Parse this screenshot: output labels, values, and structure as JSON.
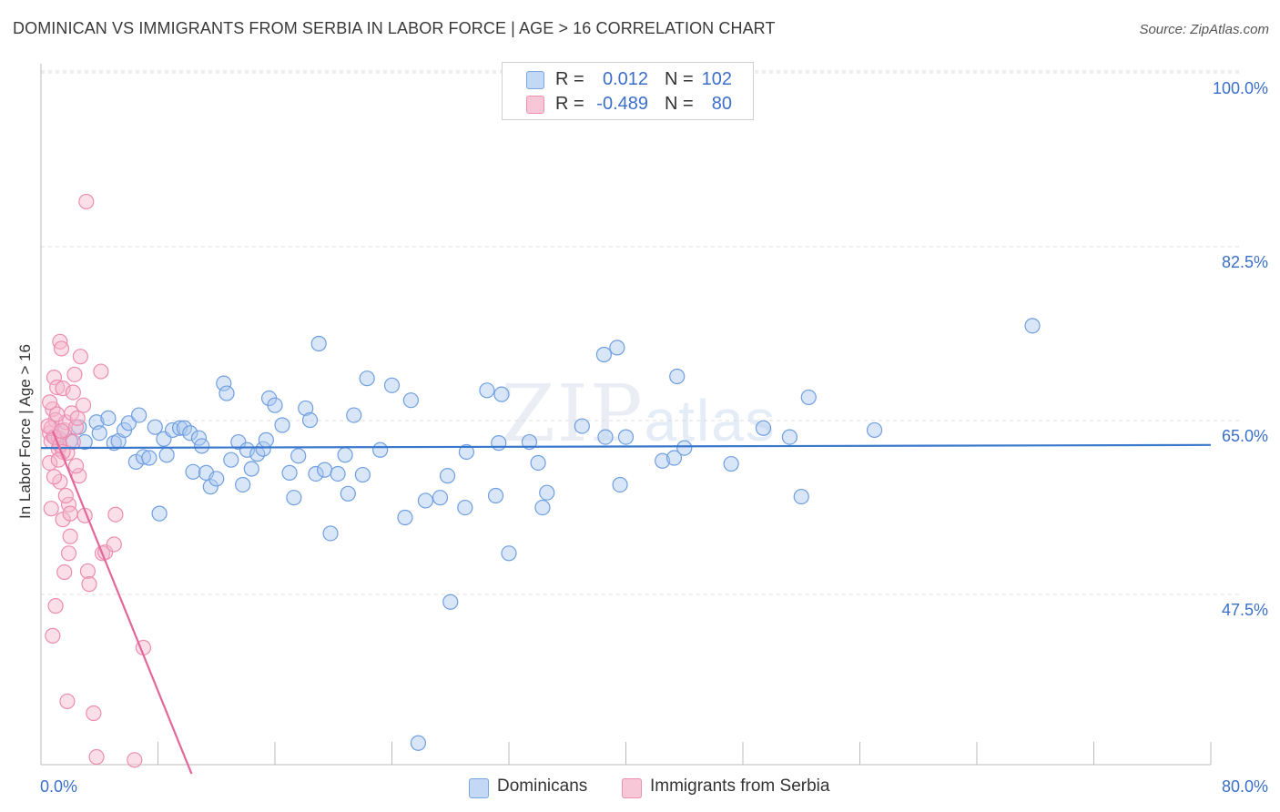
{
  "header": {
    "title": "DOMINICAN VS IMMIGRANTS FROM SERBIA IN LABOR FORCE | AGE > 16 CORRELATION CHART",
    "source": "Source: ZipAtlas.com"
  },
  "watermark": {
    "zip": "ZIP",
    "atlas": "atlas"
  },
  "stats": {
    "blue": {
      "r_label": "R =",
      "r_value": "0.012",
      "n_label": "N =",
      "n_value": "102"
    },
    "pink": {
      "r_label": "R =",
      "r_value": "-0.489",
      "n_label": "N =",
      "n_value": "80"
    }
  },
  "colors": {
    "blue": "#7aa6e0",
    "blue_line": "#3a78cc",
    "pink": "#ee8eb0",
    "pink_line": "#e3679a",
    "label_blue": "#3b6fc9"
  },
  "chart_data": {
    "type": "scatter",
    "title": "DOMINICAN VS IMMIGRANTS FROM SERBIA IN LABOR FORCE | AGE > 16 CORRELATION CHART",
    "xlabel": "",
    "ylabel": "In Labor Force | Age > 16",
    "xlim": [
      0,
      80
    ],
    "ylim": [
      30,
      100
    ],
    "x_tick_labels": [
      "0.0%",
      "80.0%"
    ],
    "y_ticks": [
      100,
      82.5,
      65,
      47.5
    ],
    "y_tick_labels": [
      "100.0%",
      "82.5%",
      "65.0%",
      "47.5%"
    ],
    "legend": [
      "Dominicans",
      "Immigrants from Serbia"
    ],
    "series": [
      {
        "name": "Dominicans",
        "trend": {
          "x": [
            0,
            80
          ],
          "y": [
            63.8,
            64.1
          ]
        },
        "points": [
          [
            1.0,
            64.8
          ],
          [
            1.4,
            65.5
          ],
          [
            2.0,
            64.5
          ],
          [
            2.6,
            65.9
          ],
          [
            3.0,
            64.4
          ],
          [
            3.8,
            66.4
          ],
          [
            4.0,
            65.3
          ],
          [
            4.6,
            66.8
          ],
          [
            5.0,
            64.3
          ],
          [
            5.3,
            64.5
          ],
          [
            5.7,
            65.6
          ],
          [
            6.0,
            66.3
          ],
          [
            6.5,
            62.4
          ],
          [
            6.7,
            67.1
          ],
          [
            7.0,
            62.9
          ],
          [
            7.4,
            62.8
          ],
          [
            7.8,
            65.9
          ],
          [
            8.1,
            57.2
          ],
          [
            8.4,
            64.7
          ],
          [
            8.6,
            63.1
          ],
          [
            9.0,
            65.6
          ],
          [
            9.5,
            65.8
          ],
          [
            9.8,
            65.8
          ],
          [
            10.2,
            65.3
          ],
          [
            10.4,
            61.4
          ],
          [
            10.8,
            64.8
          ],
          [
            11.0,
            64.0
          ],
          [
            11.3,
            61.3
          ],
          [
            11.6,
            59.9
          ],
          [
            12.0,
            60.7
          ],
          [
            12.5,
            70.3
          ],
          [
            12.7,
            69.3
          ],
          [
            13.0,
            62.6
          ],
          [
            13.5,
            64.4
          ],
          [
            13.8,
            60.1
          ],
          [
            14.1,
            63.6
          ],
          [
            14.4,
            61.7
          ],
          [
            14.8,
            63.2
          ],
          [
            15.2,
            63.7
          ],
          [
            15.4,
            64.6
          ],
          [
            15.6,
            68.8
          ],
          [
            16.0,
            68.1
          ],
          [
            16.5,
            66.1
          ],
          [
            17.0,
            61.3
          ],
          [
            17.3,
            58.8
          ],
          [
            17.6,
            63.0
          ],
          [
            18.1,
            67.8
          ],
          [
            18.4,
            66.6
          ],
          [
            18.8,
            61.2
          ],
          [
            19.0,
            74.3
          ],
          [
            19.4,
            61.6
          ],
          [
            19.8,
            55.2
          ],
          [
            20.3,
            61.2
          ],
          [
            20.8,
            63.1
          ],
          [
            21.0,
            59.2
          ],
          [
            21.4,
            67.1
          ],
          [
            22.0,
            61.1
          ],
          [
            22.3,
            70.8
          ],
          [
            23.2,
            63.6
          ],
          [
            24.0,
            70.1
          ],
          [
            24.9,
            56.8
          ],
          [
            25.3,
            68.6
          ],
          [
            25.8,
            34.1
          ],
          [
            26.3,
            58.5
          ],
          [
            27.3,
            58.8
          ],
          [
            27.8,
            61.0
          ],
          [
            28.0,
            48.3
          ],
          [
            29.0,
            57.8
          ],
          [
            29.1,
            63.4
          ],
          [
            30.5,
            69.6
          ],
          [
            31.1,
            59.0
          ],
          [
            31.3,
            64.3
          ],
          [
            31.5,
            69.2
          ],
          [
            32.0,
            53.2
          ],
          [
            33.4,
            64.4
          ],
          [
            34.0,
            62.3
          ],
          [
            34.3,
            57.8
          ],
          [
            34.6,
            59.3
          ],
          [
            37.0,
            66.0
          ],
          [
            38.5,
            73.2
          ],
          [
            38.6,
            64.9
          ],
          [
            39.4,
            73.9
          ],
          [
            39.6,
            60.1
          ],
          [
            40.0,
            64.9
          ],
          [
            42.5,
            62.5
          ],
          [
            43.3,
            62.8
          ],
          [
            43.5,
            71.0
          ],
          [
            44.0,
            63.8
          ],
          [
            47.2,
            62.2
          ],
          [
            49.4,
            65.8
          ],
          [
            51.2,
            64.9
          ],
          [
            52.0,
            58.9
          ],
          [
            52.5,
            68.9
          ],
          [
            57.0,
            65.6
          ],
          [
            67.8,
            76.1
          ]
        ]
      },
      {
        "name": "Immigrants from Serbia",
        "trend": {
          "x": [
            0.8,
            10.3
          ],
          "y": [
            65.5,
            31.0
          ]
        },
        "points": [
          [
            0.6,
            65.3
          ],
          [
            0.7,
            64.5
          ],
          [
            0.8,
            67.7
          ],
          [
            0.9,
            70.9
          ],
          [
            1.0,
            66.6
          ],
          [
            1.1,
            69.9
          ],
          [
            1.2,
            63.7
          ],
          [
            0.6,
            62.3
          ],
          [
            0.7,
            57.7
          ],
          [
            0.8,
            44.9
          ],
          [
            1.0,
            47.9
          ],
          [
            1.2,
            64.8
          ],
          [
            1.3,
            74.5
          ],
          [
            1.4,
            73.8
          ],
          [
            1.5,
            69.8
          ],
          [
            1.6,
            65.6
          ],
          [
            1.7,
            66.4
          ],
          [
            1.8,
            63.3
          ],
          [
            1.9,
            58.1
          ],
          [
            2.0,
            54.9
          ],
          [
            2.1,
            67.3
          ],
          [
            2.2,
            69.4
          ],
          [
            2.3,
            71.2
          ],
          [
            2.4,
            65.9
          ],
          [
            2.5,
            66.8
          ],
          [
            2.6,
            61.0
          ],
          [
            2.7,
            73.0
          ],
          [
            2.9,
            68.1
          ],
          [
            3.0,
            57.0
          ],
          [
            3.1,
            88.6
          ],
          [
            3.2,
            51.4
          ],
          [
            3.3,
            50.1
          ],
          [
            3.6,
            37.1
          ],
          [
            3.8,
            32.7
          ],
          [
            4.1,
            71.5
          ],
          [
            4.2,
            53.2
          ],
          [
            4.4,
            53.3
          ],
          [
            5.0,
            54.1
          ],
          [
            5.1,
            57.1
          ],
          [
            6.4,
            32.4
          ],
          [
            7.0,
            43.7
          ],
          [
            1.3,
            60.4
          ],
          [
            1.6,
            51.3
          ],
          [
            1.8,
            38.3
          ],
          [
            1.5,
            56.6
          ],
          [
            1.9,
            53.2
          ],
          [
            2.0,
            57.2
          ],
          [
            0.7,
            65.8
          ],
          [
            0.9,
            64.9
          ],
          [
            1.1,
            67.2
          ],
          [
            1.3,
            64.1
          ],
          [
            1.5,
            63.4
          ],
          [
            0.5,
            66.0
          ],
          [
            0.6,
            68.4
          ],
          [
            1.4,
            65.5
          ],
          [
            1.2,
            62.6
          ],
          [
            1.7,
            59.0
          ],
          [
            0.9,
            60.9
          ],
          [
            2.2,
            64.4
          ],
          [
            2.4,
            62.0
          ]
        ]
      }
    ]
  }
}
